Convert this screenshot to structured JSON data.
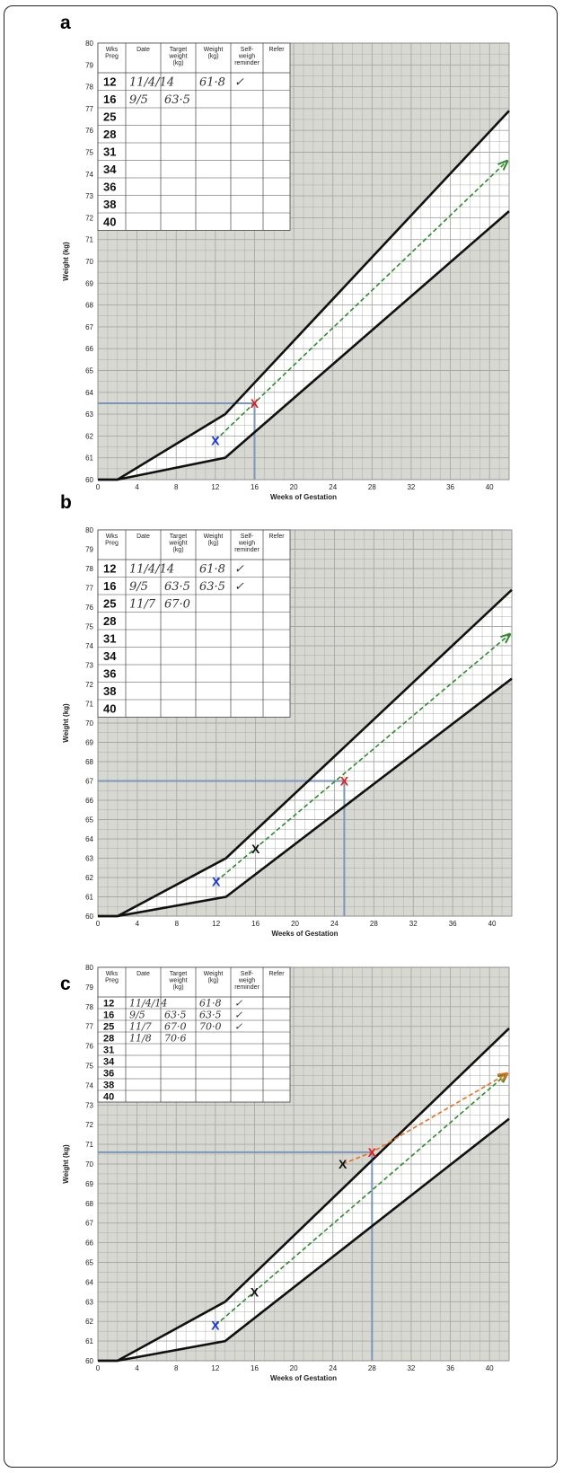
{
  "figure": {
    "panels": [
      {
        "label": "a"
      },
      {
        "label": "b"
      },
      {
        "label": "c"
      }
    ]
  },
  "colors": {
    "grid_bg": "#d8d8d3",
    "grid_line": "#a8a8a4",
    "band_fill": "#ffffff",
    "band_line": "#111111",
    "target_line": "#2e8b2e",
    "revised_line": "#e8701e",
    "guide_line": "#7b96b8",
    "mark_start": "#1a35d6",
    "mark_current": "#e02020",
    "mark_previous": "#111111"
  },
  "table": {
    "headers": [
      "Wks Preg",
      "Date",
      "Target weight (kg)",
      "Weight (kg)",
      "Self-weigh reminder",
      "Refer"
    ],
    "weeks": [
      "12",
      "16",
      "25",
      "28",
      "31",
      "34",
      "36",
      "38",
      "40"
    ]
  },
  "chart_data": [
    {
      "type": "line",
      "panel": "a",
      "xlabel": "Weeks of Gestation",
      "ylabel": "Weight (kg)",
      "xlim": [
        0,
        42
      ],
      "ylim": [
        60,
        80
      ],
      "xticks": [
        0,
        4,
        8,
        12,
        16,
        20,
        24,
        28,
        32,
        36,
        40
      ],
      "yticks": [
        60,
        61,
        62,
        63,
        64,
        65,
        66,
        67,
        68,
        69,
        70,
        71,
        72,
        73,
        74,
        75,
        76,
        77,
        78,
        79,
        80
      ],
      "grid": true,
      "band_upper": [
        {
          "x": 0,
          "y": 60
        },
        {
          "x": 2,
          "y": 60
        },
        {
          "x": 13,
          "y": 63
        },
        {
          "x": 42,
          "y": 76.9
        }
      ],
      "band_lower": [
        {
          "x": 0,
          "y": 60
        },
        {
          "x": 2,
          "y": 60
        },
        {
          "x": 13,
          "y": 61
        },
        {
          "x": 42,
          "y": 72.3
        }
      ],
      "target_line": [
        {
          "x": 12,
          "y": 61.8
        },
        {
          "x": 41.8,
          "y": 74.6
        }
      ],
      "revised_line": [],
      "guide": {
        "x": 16,
        "y": 63.5
      },
      "markers": [
        {
          "x": 12,
          "y": 61.8,
          "role": "start"
        },
        {
          "x": 16,
          "y": 63.5,
          "role": "current"
        }
      ],
      "rows": [
        {
          "date": "11/4/14",
          "target": "",
          "weight": "61·8",
          "reminder": "✓"
        },
        {
          "date": "9/5",
          "target": "63·5",
          "weight": "",
          "reminder": ""
        }
      ]
    },
    {
      "type": "line",
      "panel": "b",
      "xlabel": "Weeks of Gestation",
      "ylabel": "Weight (kg)",
      "xlim": [
        0,
        42
      ],
      "ylim": [
        60,
        80
      ],
      "xticks": [
        0,
        4,
        8,
        12,
        16,
        20,
        24,
        28,
        32,
        36,
        40
      ],
      "yticks": [
        60,
        61,
        62,
        63,
        64,
        65,
        66,
        67,
        68,
        69,
        70,
        71,
        72,
        73,
        74,
        75,
        76,
        77,
        78,
        79,
        80
      ],
      "grid": true,
      "band_upper": [
        {
          "x": 0,
          "y": 60
        },
        {
          "x": 2,
          "y": 60
        },
        {
          "x": 13,
          "y": 63
        },
        {
          "x": 42,
          "y": 76.9
        }
      ],
      "band_lower": [
        {
          "x": 0,
          "y": 60
        },
        {
          "x": 2,
          "y": 60
        },
        {
          "x": 13,
          "y": 61
        },
        {
          "x": 42,
          "y": 72.3
        }
      ],
      "target_line": [
        {
          "x": 12,
          "y": 61.8
        },
        {
          "x": 41.8,
          "y": 74.6
        }
      ],
      "revised_line": [],
      "guide": {
        "x": 25,
        "y": 67.0
      },
      "markers": [
        {
          "x": 12,
          "y": 61.8,
          "role": "start"
        },
        {
          "x": 16,
          "y": 63.5,
          "role": "previous"
        },
        {
          "x": 25,
          "y": 67.0,
          "role": "current"
        }
      ],
      "rows": [
        {
          "date": "11/4/14",
          "target": "",
          "weight": "61·8",
          "reminder": "✓"
        },
        {
          "date": "9/5",
          "target": "63·5",
          "weight": "63·5",
          "reminder": "✓"
        },
        {
          "date": "11/7",
          "target": "67·0",
          "weight": "",
          "reminder": ""
        }
      ]
    },
    {
      "type": "line",
      "panel": "c",
      "xlabel": "Weeks of Gestation",
      "ylabel": "Weight (kg)",
      "xlim": [
        0,
        42
      ],
      "ylim": [
        60,
        80
      ],
      "xticks": [
        0,
        4,
        8,
        12,
        16,
        20,
        24,
        28,
        32,
        36,
        40
      ],
      "yticks": [
        60,
        61,
        62,
        63,
        64,
        65,
        66,
        67,
        68,
        69,
        70,
        71,
        72,
        73,
        74,
        75,
        76,
        77,
        78,
        79,
        80
      ],
      "grid": true,
      "band_upper": [
        {
          "x": 0,
          "y": 60
        },
        {
          "x": 2,
          "y": 60
        },
        {
          "x": 13,
          "y": 63
        },
        {
          "x": 42,
          "y": 76.9
        }
      ],
      "band_lower": [
        {
          "x": 0,
          "y": 60
        },
        {
          "x": 2,
          "y": 60
        },
        {
          "x": 13,
          "y": 61
        },
        {
          "x": 42,
          "y": 72.3
        }
      ],
      "target_line": [
        {
          "x": 12,
          "y": 61.8
        },
        {
          "x": 41.8,
          "y": 74.6
        }
      ],
      "revised_line": [
        {
          "x": 25,
          "y": 70.0
        },
        {
          "x": 28,
          "y": 70.6
        },
        {
          "x": 41.8,
          "y": 74.6
        }
      ],
      "guide": {
        "x": 28,
        "y": 70.6
      },
      "markers": [
        {
          "x": 12,
          "y": 61.8,
          "role": "start"
        },
        {
          "x": 16,
          "y": 63.5,
          "role": "previous"
        },
        {
          "x": 25,
          "y": 70.0,
          "role": "previous"
        },
        {
          "x": 28,
          "y": 70.6,
          "role": "current"
        }
      ],
      "rows": [
        {
          "date": "11/4/14",
          "target": "",
          "weight": "61·8",
          "reminder": "✓"
        },
        {
          "date": "9/5",
          "target": "63·5",
          "weight": "63·5",
          "reminder": "✓"
        },
        {
          "date": "11/7",
          "target": "67·0",
          "weight": "70·0",
          "reminder": "✓"
        },
        {
          "date": "11/8",
          "target": "70·6",
          "weight": "",
          "reminder": ""
        }
      ]
    }
  ]
}
